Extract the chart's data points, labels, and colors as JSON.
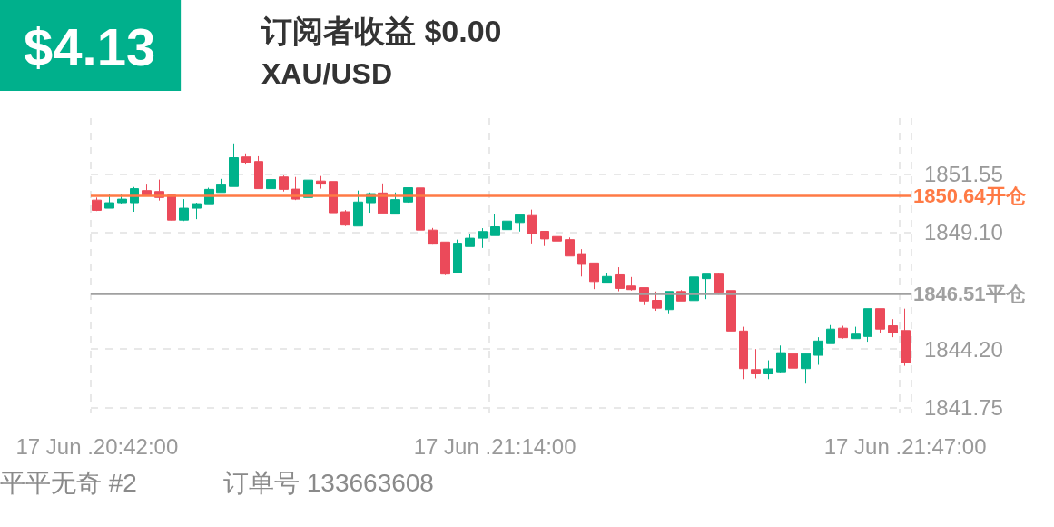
{
  "chart_data": {
    "type": "candlestick",
    "title": "订阅者收益 $0.00",
    "subtitle": "XAU/USD",
    "annotations": [
      "$4.13",
      "平平无奇 #2",
      "订单号 133663608"
    ],
    "categories": [
      "17 Jun .20:42:00",
      null,
      null,
      null,
      null,
      null,
      null,
      null,
      null,
      null,
      null,
      null,
      null,
      null,
      null,
      null,
      null,
      null,
      null,
      null,
      null,
      null,
      null,
      null,
      null,
      null,
      null,
      null,
      null,
      null,
      null,
      null,
      "17 Jun .21:14:00",
      null,
      null,
      null,
      null,
      null,
      null,
      null,
      null,
      null,
      null,
      null,
      null,
      null,
      null,
      null,
      null,
      null,
      null,
      null,
      null,
      null,
      null,
      null,
      null,
      null,
      null,
      null,
      null,
      null,
      null,
      null,
      null,
      "17 Jun .21:47:00"
    ],
    "ohlc": [
      [
        1850.46,
        1850.57,
        1850.0,
        1850.03
      ],
      [
        1850.12,
        1850.72,
        1850.12,
        1850.35
      ],
      [
        1850.35,
        1850.69,
        1850.31,
        1850.5
      ],
      [
        1850.35,
        1851.01,
        1849.97,
        1850.94
      ],
      [
        1850.86,
        1851.11,
        1850.63,
        1850.67
      ],
      [
        1850.82,
        1851.32,
        1850.44,
        1850.57
      ],
      [
        1850.67,
        1850.68,
        1849.61,
        1849.62
      ],
      [
        1849.62,
        1850.5,
        1849.58,
        1850.12
      ],
      [
        1850.12,
        1850.35,
        1849.66,
        1850.31
      ],
      [
        1850.27,
        1850.98,
        1850.27,
        1850.91
      ],
      [
        1850.78,
        1851.35,
        1850.78,
        1851.1
      ],
      [
        1851.03,
        1852.84,
        1851.03,
        1852.24
      ],
      [
        1852.27,
        1852.42,
        1851.95,
        1852.05
      ],
      [
        1852.08,
        1852.3,
        1850.94,
        1850.94
      ],
      [
        1850.94,
        1851.39,
        1850.94,
        1851.32
      ],
      [
        1851.43,
        1851.49,
        1850.82,
        1850.91
      ],
      [
        1850.92,
        1851.43,
        1850.46,
        1850.5
      ],
      [
        1850.57,
        1851.3,
        1850.57,
        1851.3
      ],
      [
        1851.26,
        1851.47,
        1850.94,
        1851.13
      ],
      [
        1851.24,
        1851.24,
        1849.93,
        1849.93
      ],
      [
        1849.97,
        1850.04,
        1849.37,
        1849.41
      ],
      [
        1849.37,
        1850.86,
        1849.37,
        1850.38
      ],
      [
        1850.35,
        1850.78,
        1849.93,
        1850.73
      ],
      [
        1850.76,
        1851.16,
        1849.9,
        1849.9
      ],
      [
        1849.87,
        1850.78,
        1849.87,
        1850.48
      ],
      [
        1850.38,
        1850.98,
        1850.35,
        1850.98
      ],
      [
        1850.97,
        1850.97,
        1849.2,
        1849.2
      ],
      [
        1849.2,
        1849.29,
        1848.59,
        1848.61
      ],
      [
        1848.7,
        1848.7,
        1847.31,
        1847.35
      ],
      [
        1847.41,
        1848.8,
        1847.41,
        1848.65
      ],
      [
        1848.51,
        1849.03,
        1848.51,
        1848.86
      ],
      [
        1848.86,
        1849.28,
        1848.45,
        1849.14
      ],
      [
        1848.97,
        1849.87,
        1848.97,
        1849.34
      ],
      [
        1849.22,
        1849.75,
        1848.53,
        1849.58
      ],
      [
        1849.52,
        1849.84,
        1849.14,
        1849.84
      ],
      [
        1849.81,
        1850.06,
        1848.64,
        1849.05
      ],
      [
        1849.15,
        1849.15,
        1848.53,
        1848.83
      ],
      [
        1848.93,
        1848.93,
        1848.51,
        1848.74
      ],
      [
        1848.8,
        1848.89,
        1848.11,
        1848.11
      ],
      [
        1848.21,
        1848.4,
        1847.25,
        1847.76
      ],
      [
        1847.82,
        1847.82,
        1846.72,
        1847.04
      ],
      [
        1846.97,
        1847.39,
        1846.97,
        1847.25
      ],
      [
        1847.32,
        1847.64,
        1846.63,
        1846.75
      ],
      [
        1846.85,
        1847.23,
        1846.66,
        1846.7
      ],
      [
        1846.78,
        1846.78,
        1846.05,
        1846.22
      ],
      [
        1846.25,
        1846.62,
        1845.81,
        1845.92
      ],
      [
        1845.86,
        1846.62,
        1845.67,
        1846.62
      ],
      [
        1846.62,
        1846.68,
        1846.22,
        1846.22
      ],
      [
        1846.24,
        1847.64,
        1846.22,
        1847.23
      ],
      [
        1847.16,
        1847.35,
        1846.3,
        1847.35
      ],
      [
        1847.35,
        1847.4,
        1846.49,
        1846.59
      ],
      [
        1846.66,
        1846.66,
        1844.96,
        1844.96
      ],
      [
        1844.96,
        1845.14,
        1842.94,
        1843.38
      ],
      [
        1843.34,
        1844.2,
        1842.97,
        1843.16
      ],
      [
        1843.16,
        1843.73,
        1842.94,
        1843.37
      ],
      [
        1843.25,
        1844.35,
        1843.22,
        1844.05
      ],
      [
        1844.01,
        1844.01,
        1842.91,
        1843.4
      ],
      [
        1843.38,
        1844.05,
        1842.75,
        1844.01
      ],
      [
        1843.94,
        1844.7,
        1843.54,
        1844.54
      ],
      [
        1844.43,
        1845.21,
        1844.43,
        1845.04
      ],
      [
        1845.08,
        1845.18,
        1844.64,
        1844.68
      ],
      [
        1844.64,
        1845.14,
        1844.64,
        1844.83
      ],
      [
        1844.73,
        1845.9,
        1844.51,
        1845.9
      ],
      [
        1845.9,
        1845.9,
        1844.89,
        1845.04
      ],
      [
        1845.18,
        1845.46,
        1844.7,
        1844.89
      ],
      [
        1844.98,
        1845.9,
        1843.5,
        1843.63
      ]
    ],
    "colors": [
      "#eb4a5a",
      "#00b28b",
      "#00b28b",
      "#00b28b",
      "#eb4a5a",
      "#eb4a5a",
      "#eb4a5a",
      "#00b28b",
      "#00b28b",
      "#00b28b",
      "#00b28b",
      "#00b28b",
      "#eb4a5a",
      "#eb4a5a",
      "#00b28b",
      "#eb4a5a",
      "#eb4a5a",
      "#00b28b",
      "#eb4a5a",
      "#eb4a5a",
      "#eb4a5a",
      "#00b28b",
      "#00b28b",
      "#eb4a5a",
      "#00b28b",
      "#00b28b",
      "#eb4a5a",
      "#eb4a5a",
      "#eb4a5a",
      "#00b28b",
      "#00b28b",
      "#00b28b",
      "#00b28b",
      "#00b28b",
      "#00b28b",
      "#eb4a5a",
      "#eb4a5a",
      "#eb4a5a",
      "#eb4a5a",
      "#eb4a5a",
      "#eb4a5a",
      "#00b28b",
      "#eb4a5a",
      "#eb4a5a",
      "#eb4a5a",
      "#eb4a5a",
      "#00b28b",
      "#eb4a5a",
      "#00b28b",
      "#00b28b",
      "#eb4a5a",
      "#eb4a5a",
      "#eb4a5a",
      "#eb4a5a",
      "#00b28b",
      "#00b28b",
      "#eb4a5a",
      "#00b28b",
      "#00b28b",
      "#00b28b",
      "#eb4a5a",
      "#00b28b",
      "#00b28b",
      "#eb4a5a",
      "#eb4a5a",
      "#eb4a5a"
    ],
    "ylim": [
      1841.5,
      1853.9
    ],
    "yticks": [
      1841.75,
      {
        "value": 1844.2,
        "label": "1844.20"
      },
      {
        "value": 1849.1,
        "label": "1849.10"
      },
      1851.55
    ],
    "grid": true,
    "ref_lines": [
      {
        "axis": "y",
        "value": 1850.64,
        "label": "1850.64开仓",
        "color": "#ff7a45"
      },
      {
        "axis": "y",
        "value": 1846.51,
        "label": "1846.51平仓",
        "color": "#a0a0a0"
      }
    ]
  }
}
